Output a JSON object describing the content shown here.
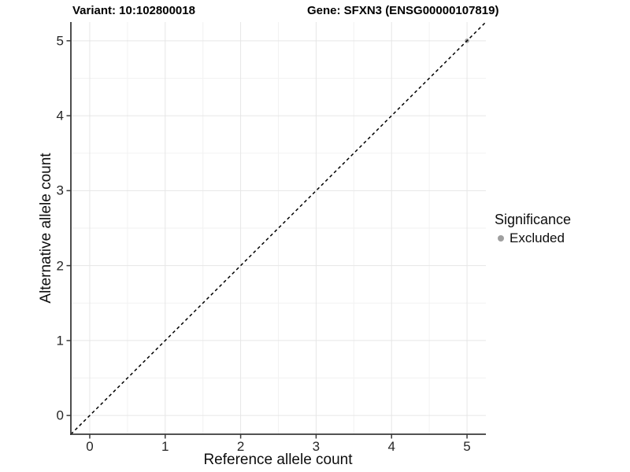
{
  "chart_data": {
    "type": "scatter",
    "title_left": "Variant: 10:102800018",
    "title_right": "Gene: SFXN3 (ENSG00000107819)",
    "xlabel": "Reference allele count",
    "ylabel": "Alternative allele count",
    "xlim": [
      -0.25,
      5.25
    ],
    "ylim": [
      -0.25,
      5.25
    ],
    "xticks": [
      0,
      1,
      2,
      3,
      4,
      5
    ],
    "yticks": [
      0,
      1,
      2,
      3,
      4,
      5
    ],
    "grid": {
      "major": true,
      "minor": true,
      "major_color": "#e6e6e6",
      "minor_color": "#f2f2f2"
    },
    "reference_line": {
      "type": "identity",
      "slope": 1,
      "intercept": 0,
      "linetype": "dashed",
      "color": "#000000"
    },
    "series": [
      {
        "name": "Excluded",
        "color": "#9f9f9f",
        "points": [
          {
            "x": 5,
            "y": 5
          }
        ]
      }
    ],
    "legend": {
      "position": "right",
      "title": "Significance",
      "entries": [
        {
          "label": "Excluded",
          "color": "#9f9f9f",
          "marker": "circle"
        }
      ]
    },
    "axis_color": "#3a3a3a",
    "background": "#ffffff"
  }
}
